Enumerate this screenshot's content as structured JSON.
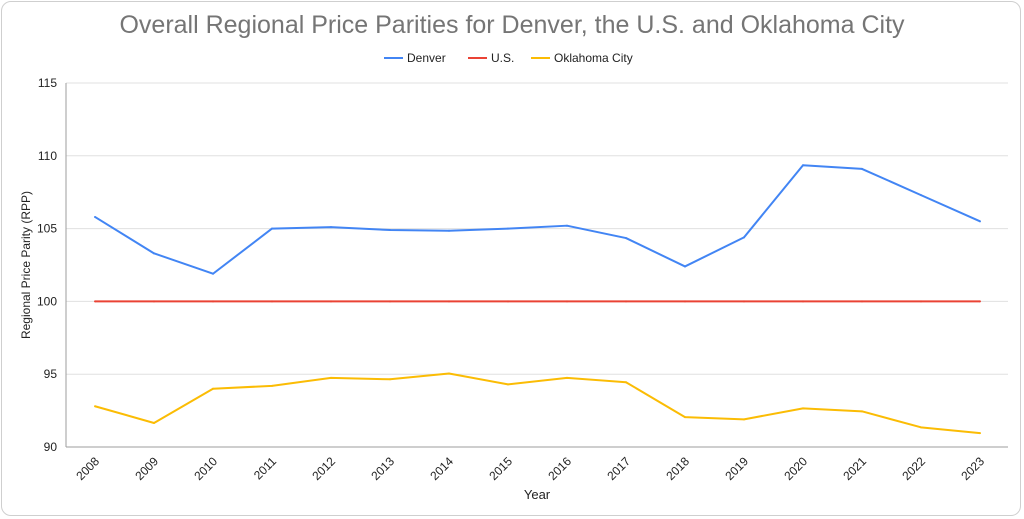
{
  "chart_data": {
    "type": "line",
    "title": "Overall Regional Price Parities for Denver, the U.S. and Oklahoma City",
    "xlabel": "Year",
    "ylabel": "Regional Price Parity (RPP)",
    "ylim": [
      90,
      115
    ],
    "yticks": [
      "90",
      "95",
      "100",
      "105",
      "110",
      "115"
    ],
    "grid": true,
    "legend": "top",
    "categories": [
      "2008",
      "2009",
      "2010",
      "2011",
      "2012",
      "2013",
      "2014",
      "2015",
      "2016",
      "2017",
      "2018",
      "2019",
      "2020",
      "2021",
      "2022",
      "2023"
    ],
    "series": [
      {
        "name": "Denver",
        "color": "#4285f4",
        "values": [
          105.8,
          103.3,
          101.9,
          105.0,
          105.1,
          104.9,
          104.85,
          105.0,
          105.2,
          104.35,
          102.4,
          104.4,
          109.35,
          109.1,
          107.3,
          105.5
        ]
      },
      {
        "name": "U.S.",
        "color": "#ea4335",
        "values": [
          100,
          100,
          100,
          100,
          100,
          100,
          100,
          100,
          100,
          100,
          100,
          100,
          100,
          100,
          100,
          100
        ]
      },
      {
        "name": "Oklahoma City",
        "color": "#fbbc04",
        "values": [
          92.8,
          91.65,
          94.0,
          94.2,
          94.75,
          94.65,
          95.05,
          94.3,
          94.75,
          94.45,
          92.05,
          91.9,
          92.65,
          92.45,
          91.35,
          90.95
        ]
      }
    ]
  }
}
